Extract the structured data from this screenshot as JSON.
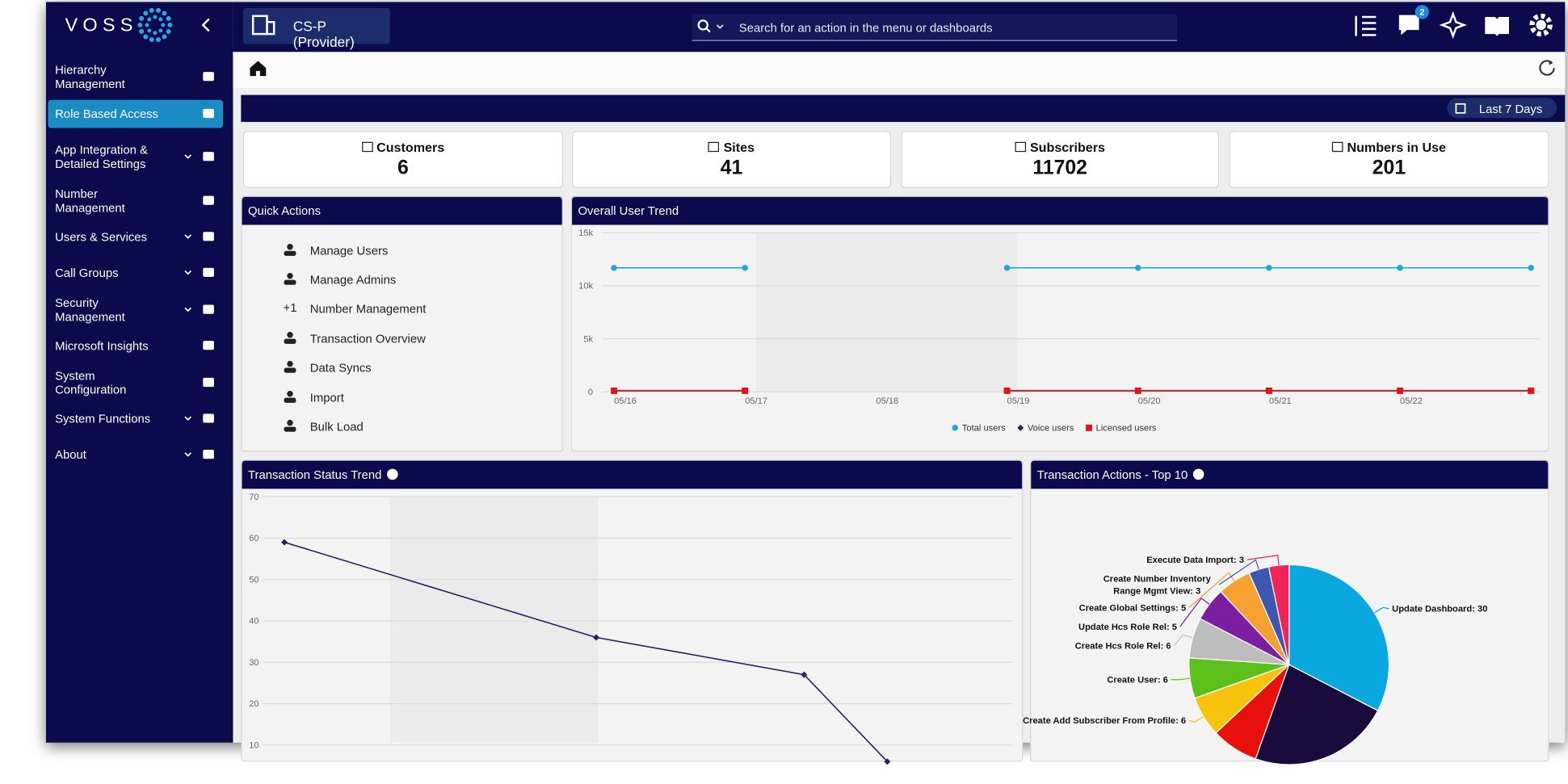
{
  "sidebar": {
    "logo": "VOSS",
    "menu": [
      {
        "label": "Hierarchy Management",
        "expandable": false
      },
      {
        "label": "Role Based Access",
        "expandable": false,
        "active": true
      },
      {
        "label": "App Integration & Detailed Settings",
        "expandable": true
      },
      {
        "label": "Number Management",
        "expandable": false
      },
      {
        "label": "Users & Services",
        "expandable": true
      },
      {
        "label": "Call Groups",
        "expandable": true
      },
      {
        "label": "Security Management",
        "expandable": true
      },
      {
        "label": "Microsoft Insights",
        "expandable": false
      },
      {
        "label": "System Configuration",
        "expandable": false
      },
      {
        "label": "System Functions",
        "expandable": true
      },
      {
        "label": "About",
        "expandable": true
      }
    ]
  },
  "topbar": {
    "context": "CS-P (Provider)",
    "search_placeholder": "Search for an action in the menu or dashboards",
    "notifications": 2
  },
  "toolbar": {
    "date_range": "Last 7 Days"
  },
  "stats": [
    {
      "label": "Customers",
      "value": 6
    },
    {
      "label": "Sites",
      "value": 41
    },
    {
      "label": "Subscribers",
      "value": 11702
    },
    {
      "label": "Numbers in Use",
      "value": 201
    }
  ],
  "quick_actions": {
    "title": "Quick Actions",
    "items": [
      {
        "label": "Manage Users"
      },
      {
        "label": "Manage Admins"
      },
      {
        "label": "Number Management",
        "icon": "+1"
      },
      {
        "label": "Transaction Overview"
      },
      {
        "label": "Data Syncs"
      },
      {
        "label": "Import"
      },
      {
        "label": "Bulk Load"
      }
    ]
  },
  "chart_data": [
    {
      "type": "line",
      "title": "Overall User Trend",
      "categories": [
        "05/16",
        "05/17",
        "05/18",
        "05/19",
        "05/20",
        "05/21",
        "05/22",
        null
      ],
      "series": [
        {
          "name": "Total users",
          "color": "#1ea7dd",
          "marker": "circle",
          "values": [
            11702,
            11702,
            null,
            11702,
            11702,
            11702,
            11702,
            11702
          ]
        },
        {
          "name": "Voice users",
          "color": "#2b1f66",
          "marker": "diamond",
          "values": [
            100,
            100,
            null,
            100,
            100,
            100,
            100,
            100
          ]
        },
        {
          "name": "Licensed users",
          "color": "#e0141b",
          "marker": "square",
          "values": [
            100,
            100,
            null,
            100,
            100,
            100,
            100,
            100
          ]
        }
      ],
      "ylim": [
        0,
        15000
      ],
      "yticks": [
        0,
        {
          "value": 5000,
          "label": "5k"
        },
        {
          "value": 10000,
          "label": "10k"
        },
        {
          "value": 15000,
          "label": "15k"
        }
      ],
      "grid": true,
      "legend": "bottom"
    },
    {
      "type": "line",
      "title": "Transaction Status Trend",
      "x": [
        1,
        4,
        6,
        6.8
      ],
      "xlim": [
        0.65,
        8
      ],
      "series": [
        {
          "color": "#2b1f66",
          "marker": "diamond",
          "values": [
            59,
            36,
            27,
            6
          ]
        }
      ],
      "ylim": [
        0,
        70
      ],
      "yticks": [
        10,
        20,
        30,
        40,
        50,
        60,
        70
      ],
      "grid": true
    },
    {
      "type": "pie",
      "title": "Transaction Actions - Top 10",
      "values": [
        30,
        21,
        7,
        6,
        6,
        6,
        5,
        5,
        3,
        3
      ],
      "value_labels": [
        "Update Dashboard: 30",
        null,
        null,
        "Create Add Subscriber From Profile: 6",
        "Create User: 6",
        "Create Hcs Role Rel: 6",
        "Update Hcs Role Rel: 5",
        "Create Global Settings: 5",
        "Create Number Inventory Range Mgmt View: 3",
        "Execute Data Import: 3"
      ],
      "colors": [
        "#0aa8e0",
        "#1b0a3c",
        "#e8100c",
        "#f7c30c",
        "#5cbf1c",
        "#bdbdbd",
        "#7b1fa0",
        "#f5a030",
        "#3d57b0",
        "#f0245a"
      ]
    }
  ]
}
